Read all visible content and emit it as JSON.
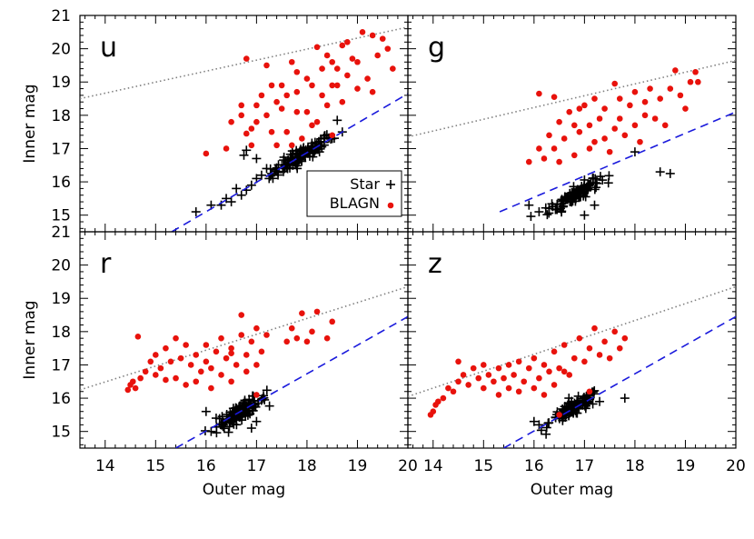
{
  "chart_data": {
    "type": "scatter",
    "xlabel": "Outer mag",
    "ylabel": "Inner mag",
    "xlim": [
      13.5,
      20
    ],
    "ylim": [
      14.5,
      21
    ],
    "x_ticks": [
      "14",
      "15",
      "16",
      "17",
      "18",
      "19",
      "20"
    ],
    "x_ticks_right": [
      "14",
      "15",
      "16",
      "17",
      "18",
      "19",
      "20"
    ],
    "y_ticks": [
      "15",
      "16",
      "17",
      "18",
      "19",
      "20",
      "21"
    ],
    "legend": {
      "position": "lower-right of panel u",
      "entries": [
        {
          "name": "Star",
          "marker": "plus",
          "color": "#000000"
        },
        {
          "name": "BLAGN",
          "marker": "circle",
          "color": "#e8120c"
        }
      ]
    },
    "colors": {
      "star": "#000000",
      "blagn": "#e8120c",
      "dashed_line": "#1a1adc",
      "dotted_line": "#808080"
    },
    "panels": [
      {
        "label": "u",
        "dashed_line": [
          [
            15.32,
            14.5
          ],
          [
            20,
            18.65
          ]
        ],
        "dotted_line": [
          [
            13.5,
            18.5
          ],
          [
            20,
            20.65
          ]
        ],
        "star_cluster": {
          "center": [
            17.9,
            16.8
          ],
          "spread_x": 0.55,
          "slope": 0.9,
          "width": 0.12,
          "count": 120
        },
        "stars": [
          [
            15.8,
            15.1
          ],
          [
            16.1,
            15.3
          ],
          [
            16.3,
            15.3
          ],
          [
            16.5,
            15.4
          ],
          [
            16.4,
            15.5
          ],
          [
            16.7,
            15.6
          ],
          [
            16.8,
            15.75
          ],
          [
            16.6,
            15.8
          ],
          [
            16.9,
            15.9
          ],
          [
            17.0,
            16.1
          ],
          [
            17.1,
            16.2
          ],
          [
            17.2,
            16.4
          ],
          [
            16.75,
            16.8
          ],
          [
            16.8,
            16.95
          ],
          [
            17.0,
            16.7
          ],
          [
            18.6,
            17.85
          ],
          [
            17.25,
            16.1
          ],
          [
            18.5,
            17.3
          ],
          [
            18.7,
            17.5
          ]
        ],
        "blagn": [
          [
            16.0,
            16.85
          ],
          [
            16.4,
            17.0
          ],
          [
            16.5,
            17.8
          ],
          [
            16.7,
            18.0
          ],
          [
            16.7,
            18.3
          ],
          [
            16.8,
            19.7
          ],
          [
            16.8,
            17.45
          ],
          [
            16.9,
            17.1
          ],
          [
            16.9,
            17.6
          ],
          [
            17.0,
            17.8
          ],
          [
            17.0,
            18.3
          ],
          [
            17.1,
            18.6
          ],
          [
            17.2,
            18.0
          ],
          [
            17.2,
            19.5
          ],
          [
            17.3,
            18.9
          ],
          [
            17.3,
            17.5
          ],
          [
            17.4,
            18.4
          ],
          [
            17.4,
            17.1
          ],
          [
            17.5,
            18.9
          ],
          [
            17.5,
            18.2
          ],
          [
            17.6,
            17.5
          ],
          [
            17.6,
            18.6
          ],
          [
            17.7,
            19.6
          ],
          [
            17.7,
            17.1
          ],
          [
            17.8,
            18.1
          ],
          [
            17.8,
            18.7
          ],
          [
            17.8,
            19.3
          ],
          [
            17.9,
            17.3
          ],
          [
            18.0,
            18.1
          ],
          [
            18.0,
            19.1
          ],
          [
            18.1,
            17.7
          ],
          [
            18.1,
            18.9
          ],
          [
            18.2,
            20.05
          ],
          [
            18.2,
            17.8
          ],
          [
            18.3,
            19.4
          ],
          [
            18.3,
            18.6
          ],
          [
            18.4,
            19.8
          ],
          [
            18.4,
            18.3
          ],
          [
            18.5,
            19.6
          ],
          [
            18.5,
            17.4
          ],
          [
            18.6,
            18.9
          ],
          [
            18.6,
            19.4
          ],
          [
            18.7,
            20.1
          ],
          [
            18.7,
            18.4
          ],
          [
            18.8,
            19.2
          ],
          [
            18.8,
            20.2
          ],
          [
            18.9,
            19.7
          ],
          [
            19.0,
            18.8
          ],
          [
            19.0,
            19.6
          ],
          [
            19.1,
            20.5
          ],
          [
            19.2,
            19.1
          ],
          [
            19.3,
            18.7
          ],
          [
            19.3,
            20.4
          ],
          [
            19.4,
            19.8
          ],
          [
            19.5,
            20.3
          ],
          [
            19.6,
            20.0
          ],
          [
            19.7,
            19.4
          ],
          [
            18.5,
            18.9
          ]
        ]
      },
      {
        "label": "g",
        "dashed_line": [
          [
            15.32,
            15.1
          ],
          [
            20,
            18.1
          ]
        ],
        "dotted_line": [
          [
            13.5,
            17.35
          ],
          [
            20,
            19.65
          ]
        ],
        "star_cluster": {
          "center": [
            16.8,
            15.6
          ],
          "spread_x": 0.45,
          "slope": 0.9,
          "width": 0.12,
          "count": 110
        },
        "stars": [
          [
            15.9,
            15.3
          ],
          [
            16.1,
            15.1
          ],
          [
            16.3,
            15.2
          ],
          [
            17.2,
            15.3
          ],
          [
            18.0,
            16.9
          ],
          [
            18.5,
            16.3
          ],
          [
            18.7,
            16.25
          ],
          [
            17.0,
            15.0
          ]
        ],
        "blagn": [
          [
            15.9,
            16.6
          ],
          [
            16.1,
            18.65
          ],
          [
            16.1,
            17.0
          ],
          [
            16.2,
            16.7
          ],
          [
            16.3,
            17.4
          ],
          [
            16.4,
            17.0
          ],
          [
            16.5,
            16.6
          ],
          [
            16.5,
            17.8
          ],
          [
            16.6,
            17.3
          ],
          [
            16.7,
            18.1
          ],
          [
            16.8,
            16.8
          ],
          [
            16.9,
            18.2
          ],
          [
            16.9,
            17.5
          ],
          [
            17.0,
            18.3
          ],
          [
            17.1,
            17.0
          ],
          [
            17.1,
            17.7
          ],
          [
            17.2,
            18.5
          ],
          [
            17.2,
            17.2
          ],
          [
            17.3,
            17.9
          ],
          [
            17.4,
            17.3
          ],
          [
            17.4,
            18.2
          ],
          [
            17.5,
            16.9
          ],
          [
            17.6,
            17.6
          ],
          [
            17.7,
            18.5
          ],
          [
            17.7,
            17.9
          ],
          [
            17.8,
            17.4
          ],
          [
            17.9,
            18.3
          ],
          [
            18.0,
            17.7
          ],
          [
            18.0,
            18.7
          ],
          [
            18.1,
            17.2
          ],
          [
            18.2,
            18.0
          ],
          [
            18.3,
            18.8
          ],
          [
            18.4,
            17.9
          ],
          [
            18.5,
            18.5
          ],
          [
            18.6,
            17.7
          ],
          [
            18.7,
            18.8
          ],
          [
            18.8,
            19.35
          ],
          [
            18.9,
            18.6
          ],
          [
            19.0,
            18.2
          ],
          [
            19.1,
            19.0
          ],
          [
            19.2,
            19.3
          ],
          [
            19.25,
            19.0
          ],
          [
            16.4,
            18.55
          ],
          [
            17.6,
            18.95
          ],
          [
            18.2,
            18.4
          ],
          [
            16.8,
            17.7
          ]
        ]
      },
      {
        "label": "r",
        "dashed_line": [
          [
            15.4,
            14.5
          ],
          [
            20,
            18.45
          ]
        ],
        "dotted_line": [
          [
            13.5,
            16.25
          ],
          [
            20,
            19.35
          ]
        ],
        "star_cluster": {
          "center": [
            16.7,
            15.6
          ],
          "spread_x": 0.45,
          "slope": 0.85,
          "width": 0.12,
          "count": 110
        },
        "stars": [
          [
            16.1,
            15.0
          ],
          [
            16.2,
            15.4
          ],
          [
            16.9,
            15.1
          ],
          [
            17.0,
            15.3
          ],
          [
            16.0,
            15.6
          ]
        ],
        "blagn": [
          [
            14.45,
            16.25
          ],
          [
            14.5,
            16.4
          ],
          [
            14.55,
            16.5
          ],
          [
            14.6,
            16.3
          ],
          [
            14.65,
            17.85
          ],
          [
            14.7,
            16.6
          ],
          [
            14.8,
            16.8
          ],
          [
            14.9,
            17.1
          ],
          [
            15.0,
            16.7
          ],
          [
            15.0,
            17.3
          ],
          [
            15.1,
            16.9
          ],
          [
            15.2,
            17.5
          ],
          [
            15.2,
            16.55
          ],
          [
            15.3,
            17.1
          ],
          [
            15.4,
            16.6
          ],
          [
            15.4,
            17.8
          ],
          [
            15.5,
            17.2
          ],
          [
            15.6,
            16.4
          ],
          [
            15.6,
            17.6
          ],
          [
            15.7,
            17.0
          ],
          [
            15.8,
            17.3
          ],
          [
            15.8,
            16.5
          ],
          [
            15.9,
            16.8
          ],
          [
            16.0,
            17.1
          ],
          [
            16.0,
            17.6
          ],
          [
            16.1,
            16.9
          ],
          [
            16.1,
            16.3
          ],
          [
            16.2,
            17.4
          ],
          [
            16.3,
            16.7
          ],
          [
            16.3,
            17.8
          ],
          [
            16.4,
            17.2
          ],
          [
            16.5,
            16.5
          ],
          [
            16.5,
            17.5
          ],
          [
            16.6,
            17.0
          ],
          [
            16.7,
            17.9
          ],
          [
            16.7,
            18.5
          ],
          [
            16.8,
            16.8
          ],
          [
            16.8,
            17.3
          ],
          [
            16.9,
            17.7
          ],
          [
            17.0,
            18.1
          ],
          [
            17.0,
            17.0
          ],
          [
            17.0,
            16.1
          ],
          [
            17.1,
            17.4
          ],
          [
            17.2,
            17.9
          ],
          [
            17.6,
            17.7
          ],
          [
            17.7,
            18.1
          ],
          [
            17.8,
            17.8
          ],
          [
            17.9,
            18.55
          ],
          [
            18.0,
            17.7
          ],
          [
            18.1,
            18.0
          ],
          [
            18.2,
            18.6
          ],
          [
            18.4,
            17.8
          ],
          [
            18.5,
            18.3
          ],
          [
            16.5,
            17.35
          ]
        ]
      },
      {
        "label": "z",
        "dashed_line": [
          [
            15.4,
            14.5
          ],
          [
            20,
            18.45
          ]
        ],
        "dotted_line": [
          [
            13.5,
            16.05
          ],
          [
            20,
            19.35
          ]
        ],
        "star_cluster": {
          "center": [
            16.8,
            15.7
          ],
          "spread_x": 0.45,
          "slope": 0.85,
          "width": 0.12,
          "count": 110
        },
        "stars": [
          [
            16.0,
            15.3
          ],
          [
            16.1,
            15.2
          ],
          [
            17.8,
            16.0
          ],
          [
            17.3,
            15.9
          ]
        ],
        "blagn": [
          [
            13.95,
            15.5
          ],
          [
            14.0,
            15.6
          ],
          [
            14.05,
            15.8
          ],
          [
            14.1,
            15.9
          ],
          [
            14.2,
            16.0
          ],
          [
            14.3,
            16.3
          ],
          [
            14.4,
            16.2
          ],
          [
            14.5,
            16.5
          ],
          [
            14.5,
            17.1
          ],
          [
            14.6,
            16.7
          ],
          [
            14.7,
            16.4
          ],
          [
            14.8,
            16.9
          ],
          [
            14.9,
            16.6
          ],
          [
            15.0,
            16.3
          ],
          [
            15.0,
            17.0
          ],
          [
            15.1,
            16.7
          ],
          [
            15.2,
            16.5
          ],
          [
            15.3,
            16.9
          ],
          [
            15.3,
            16.1
          ],
          [
            15.4,
            16.6
          ],
          [
            15.5,
            16.3
          ],
          [
            15.5,
            17.0
          ],
          [
            15.6,
            16.7
          ],
          [
            15.7,
            16.2
          ],
          [
            15.7,
            17.1
          ],
          [
            15.8,
            16.5
          ],
          [
            15.9,
            16.9
          ],
          [
            16.0,
            16.3
          ],
          [
            16.0,
            17.2
          ],
          [
            16.1,
            16.6
          ],
          [
            16.2,
            17.0
          ],
          [
            16.2,
            16.1
          ],
          [
            16.3,
            16.8
          ],
          [
            16.4,
            17.4
          ],
          [
            16.4,
            16.4
          ],
          [
            16.5,
            16.9
          ],
          [
            16.6,
            17.6
          ],
          [
            16.7,
            16.7
          ],
          [
            16.8,
            17.2
          ],
          [
            16.9,
            17.8
          ],
          [
            17.0,
            17.1
          ],
          [
            17.1,
            17.5
          ],
          [
            17.2,
            18.1
          ],
          [
            17.3,
            17.3
          ],
          [
            17.4,
            17.7
          ],
          [
            17.5,
            17.2
          ],
          [
            17.6,
            18.0
          ],
          [
            17.7,
            17.5
          ],
          [
            17.8,
            17.8
          ],
          [
            16.5,
            15.5
          ],
          [
            16.6,
            16.8
          ],
          [
            17.1,
            16.2
          ]
        ]
      }
    ]
  }
}
